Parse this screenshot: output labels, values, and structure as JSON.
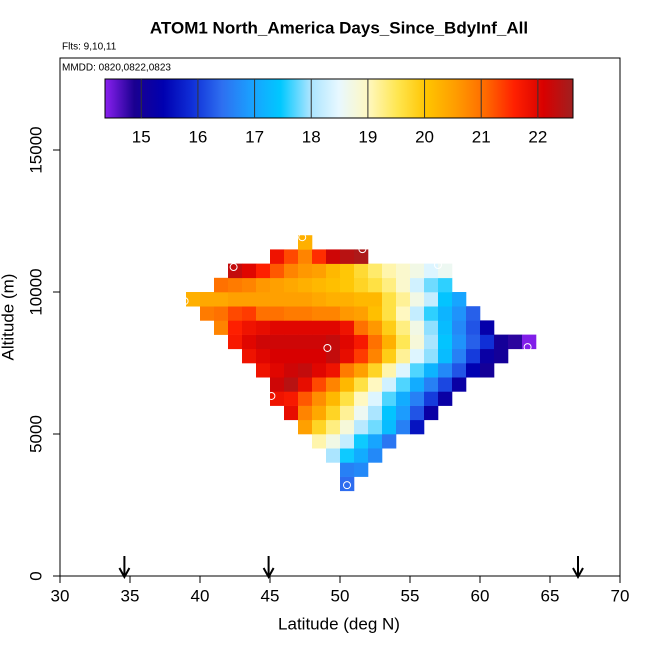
{
  "chart_data": {
    "type": "heatmap",
    "title": "ATOM1 North_America Days_Since_BdyInf_All",
    "subtitle": "Flts: 9,10,11",
    "annotation": "MMDD: 0820,0822,0823",
    "xlabel": "Latitude (deg N)",
    "ylabel": "Altitude (m)",
    "xlim": [
      30,
      70
    ],
    "xticks": [
      30,
      35,
      40,
      45,
      50,
      55,
      60,
      65,
      70
    ],
    "ylim": [
      0,
      18240
    ],
    "yticks": [
      0,
      5000,
      10000,
      15000
    ],
    "xbins": [
      39,
      40,
      41,
      42,
      43,
      44,
      45,
      46,
      47,
      48,
      49,
      50,
      51,
      52,
      53,
      54,
      55,
      56,
      57,
      58,
      59,
      60,
      61,
      62,
      63,
      64
    ],
    "ybins": [
      3000,
      3500,
      4000,
      4500,
      5000,
      5500,
      6000,
      6500,
      7000,
      7500,
      8000,
      8500,
      9000,
      9500,
      10000,
      10500,
      11000,
      11500,
      12000
    ],
    "values": [
      [
        null,
        null,
        null,
        null,
        null,
        null,
        null,
        null,
        null,
        null,
        null,
        16.4,
        null,
        null,
        null,
        null,
        null,
        null,
        null,
        null,
        null,
        null,
        null,
        null,
        null
      ],
      [
        null,
        null,
        null,
        null,
        null,
        null,
        null,
        null,
        null,
        null,
        null,
        16.6,
        16.7,
        null,
        null,
        null,
        null,
        null,
        null,
        null,
        null,
        null,
        null,
        null,
        null
      ],
      [
        null,
        null,
        null,
        null,
        null,
        null,
        null,
        null,
        null,
        null,
        18.0,
        17.5,
        17.1,
        16.7,
        null,
        null,
        null,
        null,
        null,
        null,
        null,
        null,
        null,
        null,
        null
      ],
      [
        null,
        null,
        null,
        null,
        null,
        null,
        null,
        null,
        null,
        19.1,
        18.7,
        18.2,
        17.5,
        17.0,
        16.5,
        null,
        null,
        null,
        null,
        null,
        null,
        null,
        null,
        null,
        null
      ],
      [
        null,
        null,
        null,
        null,
        null,
        null,
        null,
        null,
        20.5,
        19.8,
        19.3,
        18.8,
        18.1,
        17.8,
        17.3,
        16.6,
        15.6,
        null,
        null,
        null,
        null,
        null,
        null,
        null,
        null
      ],
      [
        null,
        null,
        null,
        null,
        null,
        null,
        null,
        21.9,
        20.8,
        20.4,
        19.8,
        19.2,
        18.6,
        18.0,
        17.4,
        16.9,
        16.2,
        15.2,
        null,
        null,
        null,
        null,
        null,
        null,
        null
      ],
      [
        null,
        null,
        null,
        null,
        null,
        null,
        21.8,
        21.7,
        21.2,
        20.7,
        20.2,
        19.6,
        19.0,
        18.4,
        17.7,
        17.1,
        16.6,
        16.0,
        15.2,
        null,
        null,
        null,
        null,
        null,
        null
      ],
      [
        null,
        null,
        null,
        null,
        null,
        null,
        22.2,
        22.4,
        21.9,
        21.3,
        20.8,
        20.2,
        19.6,
        19.0,
        18.3,
        17.7,
        17.1,
        16.6,
        16.1,
        15.2,
        null,
        null,
        null,
        null,
        null
      ],
      [
        null,
        null,
        null,
        null,
        null,
        21.8,
        22.0,
        22.2,
        22.3,
        22.0,
        21.8,
        20.9,
        20.5,
        19.8,
        19.1,
        18.4,
        17.7,
        17.2,
        16.7,
        16.2,
        15.4,
        15.0,
        null,
        null,
        null
      ],
      [
        null,
        null,
        null,
        null,
        21.8,
        22.0,
        22.1,
        22.1,
        22.1,
        22.1,
        22.3,
        21.9,
        21.4,
        20.8,
        19.9,
        19.2,
        18.4,
        17.9,
        17.3,
        16.6,
        16.0,
        15.2,
        15.0,
        null,
        null
      ],
      [
        null,
        null,
        null,
        21.7,
        22.0,
        22.2,
        22.2,
        22.2,
        22.2,
        22.2,
        22.3,
        22.0,
        21.7,
        21.0,
        20.3,
        19.5,
        18.8,
        18.0,
        17.4,
        16.8,
        16.3,
        15.9,
        15.0,
        14.8,
        14.4
      ],
      [
        null,
        null,
        20.8,
        21.6,
        21.8,
        21.9,
        22.0,
        22.0,
        22.0,
        22.0,
        22.0,
        21.8,
        21.0,
        20.6,
        19.9,
        19.3,
        18.7,
        17.9,
        17.3,
        16.7,
        16.2,
        15.3,
        null,
        null,
        null
      ],
      [
        null,
        20.9,
        21.0,
        21.3,
        21.4,
        21.0,
        21.0,
        20.9,
        20.9,
        20.8,
        20.8,
        20.6,
        20.5,
        20.1,
        19.6,
        19.0,
        18.2,
        17.6,
        17.2,
        16.8,
        16.3,
        null,
        null,
        null,
        null
      ],
      [
        20.3,
        20.4,
        20.4,
        20.5,
        20.5,
        20.5,
        20.5,
        20.5,
        20.5,
        20.4,
        20.3,
        20.3,
        20.2,
        20.2,
        19.6,
        19.2,
        18.7,
        18.2,
        17.4,
        17.0,
        null,
        null,
        null,
        null,
        null
      ],
      [
        null,
        null,
        21.0,
        20.9,
        20.8,
        20.6,
        20.5,
        20.4,
        20.3,
        20.2,
        20.1,
        20.0,
        19.8,
        19.6,
        19.3,
        18.9,
        18.3,
        17.8,
        17.6,
        null,
        null,
        null,
        null,
        null,
        null
      ],
      [
        null,
        null,
        null,
        22.3,
        22.0,
        21.6,
        21.2,
        20.8,
        20.6,
        20.5,
        20.2,
        20.0,
        19.7,
        19.4,
        19.1,
        18.9,
        18.7,
        18.4,
        18.6,
        null,
        null,
        null,
        null,
        null,
        null
      ],
      [
        null,
        null,
        null,
        null,
        null,
        null,
        21.8,
        21.3,
        20.8,
        21.5,
        22.2,
        22.4,
        22.5,
        null,
        null,
        null,
        null,
        null,
        null,
        null,
        null,
        null,
        null,
        null,
        null
      ],
      [
        null,
        null,
        null,
        null,
        null,
        null,
        null,
        null,
        20.3,
        null,
        null,
        null,
        null,
        null,
        null,
        null,
        null,
        null,
        null,
        null,
        null,
        null,
        null,
        null,
        null
      ]
    ],
    "colorbar": {
      "lim": [
        14.36,
        22.62
      ],
      "ticks": [
        15,
        16,
        17,
        18,
        19,
        20,
        21,
        22
      ],
      "colors": [
        "#8a20f0",
        "#1a0090",
        "#0000b0",
        "#1030d8",
        "#2e6ff0",
        "#1aa0ff",
        "#00c8ff",
        "#a8e4ff",
        "#e8f8ff",
        "#fff8c0",
        "#ffe650",
        "#ffc400",
        "#ff9c00",
        "#ff6a00",
        "#ff2000",
        "#d80000",
        "#a02020"
      ]
    },
    "points": {
      "x": [
        47.3,
        51.6,
        42.4,
        38.9,
        57.0,
        49.1,
        63.4,
        45.1,
        50.5
      ],
      "y": [
        11930,
        11510,
        10880,
        9680,
        10950,
        8030,
        8060,
        6340,
        3200
      ]
    },
    "arrows_x": [
      34.6,
      44.9,
      67.0
    ]
  }
}
